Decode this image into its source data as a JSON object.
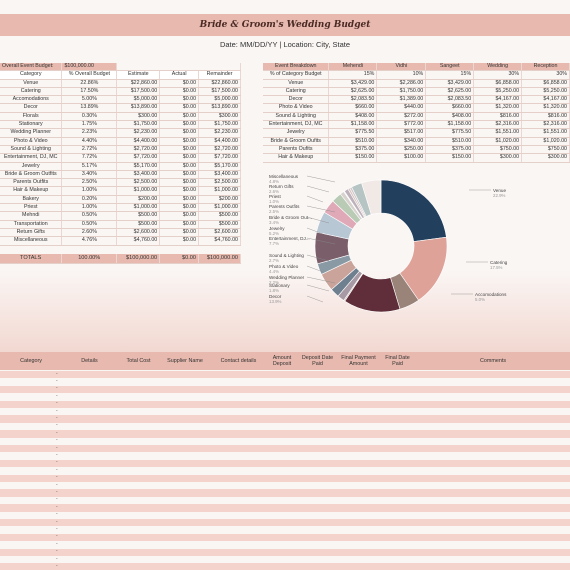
{
  "header": {
    "title": "Bride & Groom's Wedding Budget",
    "subtitle": "Date: MM/DD/YY   |   Location: City, State"
  },
  "budget": {
    "overall_label": "Overall Event Budget:",
    "overall_value": "$100,000.00",
    "columns": [
      "Category",
      "% Overall Budget",
      "Estimate",
      "Actual",
      "Remainder"
    ],
    "rows": [
      [
        "Venue",
        "22.86%",
        "$22,860.00",
        "$0.00",
        "$22,860.00"
      ],
      [
        "Catering",
        "17.50%",
        "$17,500.00",
        "$0.00",
        "$17,500.00"
      ],
      [
        "Accomodations",
        "5.00%",
        "$5,000.00",
        "$0.00",
        "$5,000.00"
      ],
      [
        "Decor",
        "13.89%",
        "$13,890.00",
        "$0.00",
        "$13,890.00"
      ],
      [
        "Florals",
        "0.30%",
        "$300.00",
        "$0.00",
        "$300.00"
      ],
      [
        "Stationary",
        "1.75%",
        "$1,750.00",
        "$0.00",
        "$1,750.00"
      ],
      [
        "Wedding Planner",
        "2.23%",
        "$2,230.00",
        "$0.00",
        "$2,230.00"
      ],
      [
        "Photo & Video",
        "4.40%",
        "$4,400.00",
        "$0.00",
        "$4,400.00"
      ],
      [
        "Sound & Lighting",
        "2.72%",
        "$2,720.00",
        "$0.00",
        "$2,720.00"
      ],
      [
        "Entertainment, DJ, MC",
        "7.72%",
        "$7,720.00",
        "$0.00",
        "$7,720.00"
      ],
      [
        "Jewelry",
        "5.17%",
        "$5,170.00",
        "$0.00",
        "$5,170.00"
      ],
      [
        "Bride & Groom Outfits",
        "3.40%",
        "$3,400.00",
        "$0.00",
        "$3,400.00"
      ],
      [
        "Parents Outfits",
        "2.50%",
        "$2,500.00",
        "$0.00",
        "$2,500.00"
      ],
      [
        "Hair & Makeup",
        "1.00%",
        "$1,000.00",
        "$0.00",
        "$1,000.00"
      ],
      [
        "Bakery",
        "0.20%",
        "$200.00",
        "$0.00",
        "$200.00"
      ],
      [
        "Priest",
        "1.00%",
        "$1,000.00",
        "$0.00",
        "$1,000.00"
      ],
      [
        "Mehndi",
        "0.50%",
        "$500.00",
        "$0.00",
        "$500.00"
      ],
      [
        "Transportation",
        "0.50%",
        "$500.00",
        "$0.00",
        "$500.00"
      ],
      [
        "Return Gifts",
        "2.60%",
        "$2,600.00",
        "$0.00",
        "$2,600.00"
      ],
      [
        "Miscellaneous",
        "4.76%",
        "$4,760.00",
        "$0.00",
        "$4,760.00"
      ]
    ],
    "totals": [
      "TOTALS",
      "100.00%",
      "$100,000.00",
      "$0.00",
      "$100,000.00"
    ]
  },
  "breakdown": {
    "columns": [
      "Event Breakdown",
      "Mehendi",
      "Vidhi",
      "Sangeet",
      "Wedding",
      "Reception"
    ],
    "rows": [
      [
        "% of Category Budget",
        "15%",
        "10%",
        "15%",
        "30%",
        "30%"
      ],
      [
        "Venue",
        "$3,429.00",
        "$2,286.00",
        "$3,429.00",
        "$6,858.00",
        "$6,858.00"
      ],
      [
        "Catering",
        "$2,625.00",
        "$1,750.00",
        "$2,625.00",
        "$5,250.00",
        "$5,250.00"
      ],
      [
        "Decor",
        "$2,083.50",
        "$1,389.00",
        "$2,083.50",
        "$4,167.00",
        "$4,167.00"
      ],
      [
        "Photo & Video",
        "$660.00",
        "$440.00",
        "$660.00",
        "$1,320.00",
        "$1,320.00"
      ],
      [
        "Sound & Lighting",
        "$408.00",
        "$272.00",
        "$408.00",
        "$816.00",
        "$816.00"
      ],
      [
        "Entertainment, DJ, MC",
        "$1,158.00",
        "$772.00",
        "$1,158.00",
        "$2,316.00",
        "$2,316.00"
      ],
      [
        "Jewelry",
        "$775.50",
        "$517.00",
        "$775.50",
        "$1,551.00",
        "$1,551.00"
      ],
      [
        "Bride & Groom Oufits",
        "$510.00",
        "$340.00",
        "$510.00",
        "$1,020.00",
        "$1,020.00"
      ],
      [
        "Parents Oufits",
        "$375.00",
        "$250.00",
        "$375.00",
        "$750.00",
        "$750.00"
      ],
      [
        "Hair & Makeup",
        "$150.00",
        "$100.00",
        "$150.00",
        "$300.00",
        "$300.00"
      ]
    ]
  },
  "chart_data": {
    "type": "pie",
    "title": "",
    "categories": [
      "Venue",
      "Catering",
      "Accomodations",
      "Decor",
      "Florals",
      "Stationary",
      "Wedding Planner",
      "Photo & Video",
      "Sound & Lighting",
      "Entertainment, DJ, MC",
      "Jewelry",
      "Bride & Groom Outfits",
      "Parents Outfits",
      "Hair & Makeup",
      "Bakery",
      "Priest",
      "Mehndi",
      "Transportation",
      "Return Gifts",
      "Miscellaneous"
    ],
    "values": [
      22.86,
      17.5,
      5.0,
      13.89,
      0.3,
      1.75,
      2.23,
      4.4,
      2.72,
      7.72,
      5.17,
      3.4,
      2.5,
      1.0,
      0.2,
      1.0,
      0.5,
      0.5,
      2.6,
      4.76
    ],
    "colors": [
      "#22405e",
      "#dfa298",
      "#9a8378",
      "#5f2e3a",
      "#c9b4ae",
      "#a89aa4",
      "#6e7f8f",
      "#caa49a",
      "#8a9aa5",
      "#7a5f6b",
      "#b8c7d4",
      "#e0a9b8",
      "#b9cbb5",
      "#d8d2cf",
      "#ece7e4",
      "#bdb2bb",
      "#d9c4be",
      "#cfc5c9",
      "#b6c4c3",
      "#f1e9e6"
    ],
    "callouts": [
      {
        "label": "Venue",
        "pct": "22.9%"
      },
      {
        "label": "Catering",
        "pct": "17.5%"
      },
      {
        "label": "Accomodations",
        "pct": "5.0%"
      },
      {
        "label": "Decor",
        "pct": "13.9%"
      },
      {
        "label": "Stationary",
        "pct": "1.8%"
      },
      {
        "label": "Wedding Planner",
        "pct": "2.2%"
      },
      {
        "label": "Photo & Video",
        "pct": "4.4%"
      },
      {
        "label": "Sound & Lighting",
        "pct": "2.7%"
      },
      {
        "label": "Entertainment, DJ...",
        "pct": "7.7%"
      },
      {
        "label": "Jewelry",
        "pct": "5.2%"
      },
      {
        "label": "Bride & Groom Out...",
        "pct": "3.4%"
      },
      {
        "label": "Parents Outfits",
        "pct": "2.5%"
      },
      {
        "label": "Priest",
        "pct": "1.0%"
      },
      {
        "label": "Return Gifts",
        "pct": "2.6%"
      },
      {
        "label": "Miscellaneous",
        "pct": "4.8%"
      }
    ]
  },
  "suppliers": {
    "columns": [
      "Category",
      "Details",
      "Total Cost",
      "Supplier Name",
      "Contact details",
      "Amount Deposit",
      "Deposit Date Paid",
      "Final Payment Amount",
      "Final Date Paid",
      "Comments"
    ],
    "placeholder": "-"
  }
}
